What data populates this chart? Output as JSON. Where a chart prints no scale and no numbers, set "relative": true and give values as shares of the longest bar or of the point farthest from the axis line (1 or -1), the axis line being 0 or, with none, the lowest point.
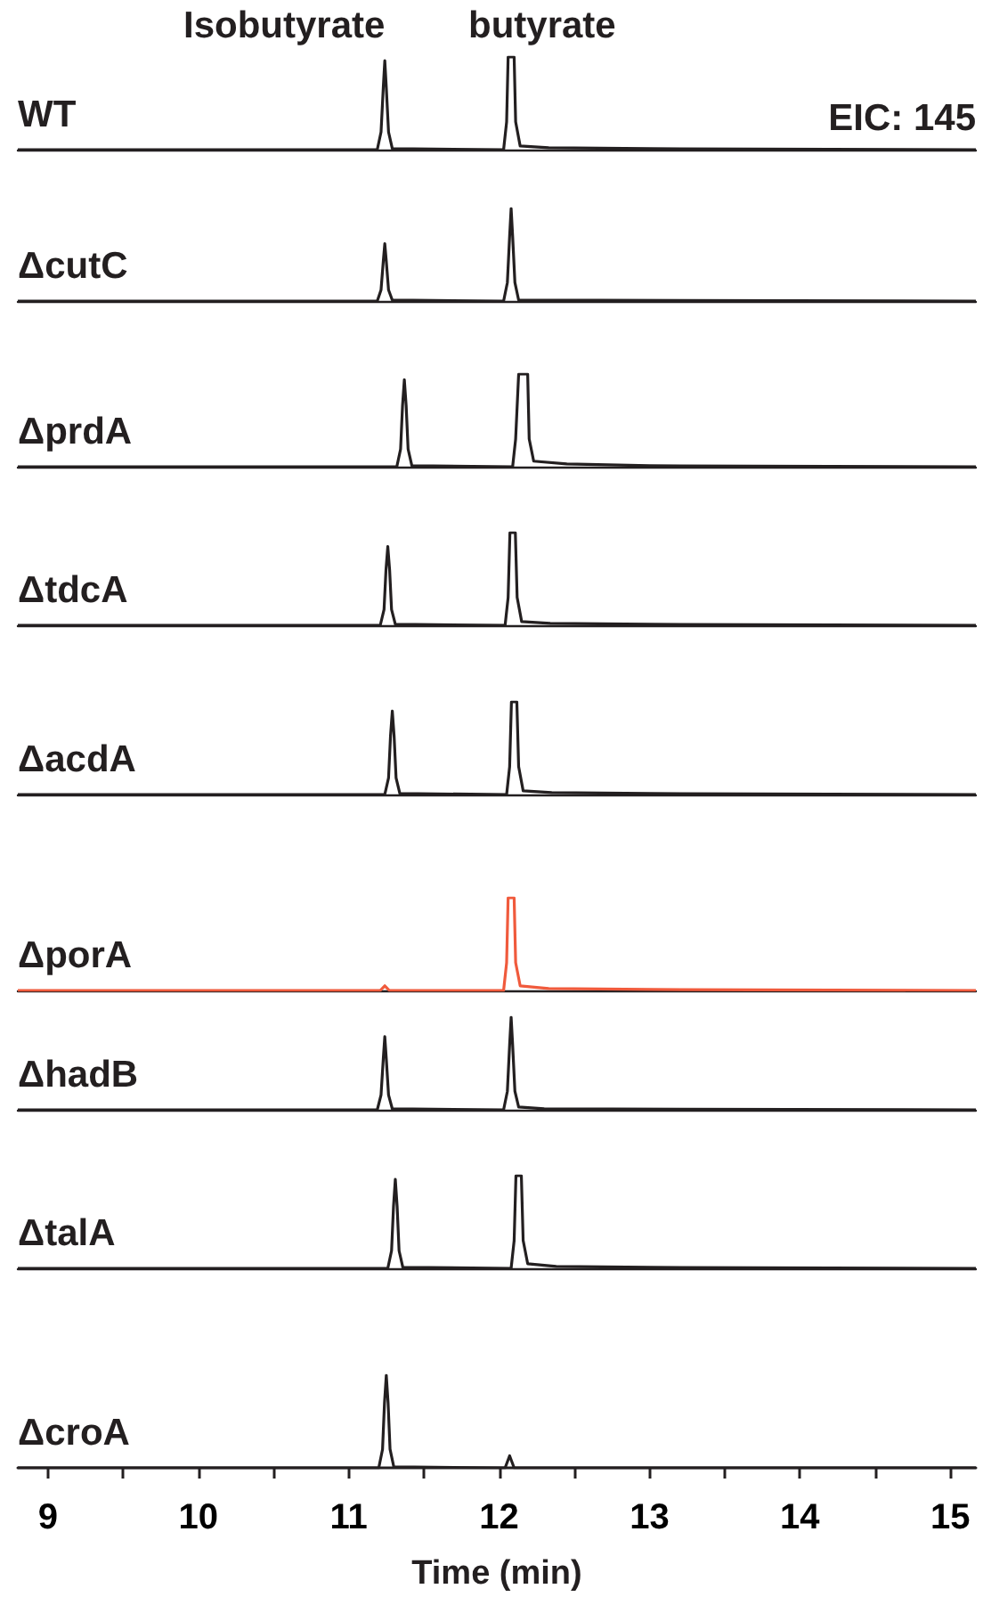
{
  "chart_data": [
    {
      "type": "line",
      "relative": true,
      "annotations": [
        "Isobutyrate",
        "butyrate",
        "EIC: 145"
      ],
      "xlim": [
        8.8,
        15.17
      ],
      "tick_labels": false,
      "series": [
        {
          "name": "WT",
          "color": "#231f20",
          "x": [
            8.8,
            11.19,
            11.215,
            11.23,
            11.24,
            11.25,
            11.265,
            11.29,
            12.03,
            12.05,
            12.06,
            12.1,
            12.11,
            12.14,
            12.33,
            13,
            15.17
          ],
          "values": [
            0,
            0,
            0.19,
            0.67,
            0.96,
            0.67,
            0.19,
            0.01,
            0,
            0.3,
            1,
            1,
            0.3,
            0.04,
            0.02,
            0.01,
            0
          ]
        }
      ]
    },
    {
      "type": "line",
      "relative": true,
      "xlim": [
        8.8,
        15.17
      ],
      "tick_labels": false,
      "series": [
        {
          "name": "ΔcutC",
          "color": "#231f20",
          "x": [
            8.8,
            11.19,
            11.215,
            11.23,
            11.24,
            11.25,
            11.265,
            11.29,
            12.03,
            12.055,
            12.07,
            12.08,
            12.09,
            12.105,
            12.13,
            15.17
          ],
          "values": [
            0,
            0,
            0.12,
            0.43,
            0.62,
            0.43,
            0.12,
            0.01,
            0,
            0.2,
            0.7,
            1,
            0.7,
            0.2,
            0.01,
            0
          ]
        }
      ]
    },
    {
      "type": "line",
      "relative": true,
      "xlim": [
        8.8,
        15.17
      ],
      "tick_labels": false,
      "series": [
        {
          "name": "ΔprdA",
          "color": "#231f20",
          "x": [
            8.8,
            11.32,
            11.345,
            11.358,
            11.37,
            11.382,
            11.395,
            11.42,
            12.09,
            12.11,
            12.13,
            12.19,
            12.2,
            12.23,
            12.45,
            13,
            15.17
          ],
          "values": [
            0,
            0,
            0.19,
            0.66,
            0.94,
            0.66,
            0.19,
            0.01,
            0,
            0.3,
            1,
            1,
            0.3,
            0.06,
            0.03,
            0.01,
            0
          ]
        }
      ]
    },
    {
      "type": "line",
      "relative": true,
      "xlim": [
        8.8,
        15.17
      ],
      "tick_labels": false,
      "series": [
        {
          "name": "ΔtdcA",
          "color": "#231f20",
          "x": [
            8.8,
            11.21,
            11.235,
            11.248,
            11.26,
            11.272,
            11.285,
            11.31,
            12.04,
            12.06,
            12.072,
            12.108,
            12.12,
            12.15,
            12.34,
            13,
            15.17
          ],
          "values": [
            0,
            0,
            0.17,
            0.6,
            0.85,
            0.6,
            0.17,
            0.01,
            0,
            0.3,
            1,
            1,
            0.3,
            0.04,
            0.02,
            0.01,
            0
          ]
        }
      ]
    },
    {
      "type": "line",
      "relative": true,
      "xlim": [
        8.8,
        15.17
      ],
      "tick_labels": false,
      "series": [
        {
          "name": "ΔacdA",
          "color": "#231f20",
          "x": [
            8.8,
            11.24,
            11.265,
            11.278,
            11.29,
            11.302,
            11.315,
            11.34,
            12.05,
            12.07,
            12.082,
            12.118,
            12.13,
            12.16,
            12.35,
            13,
            15.17
          ],
          "values": [
            0,
            0,
            0.18,
            0.63,
            0.9,
            0.63,
            0.18,
            0.01,
            0,
            0.3,
            1,
            1,
            0.3,
            0.04,
            0.02,
            0.01,
            0
          ]
        }
      ]
    },
    {
      "type": "line",
      "relative": true,
      "xlim": [
        8.8,
        15.17
      ],
      "tick_labels": false,
      "series": [
        {
          "name": "ΔporA",
          "color": "#f05a3c",
          "x": [
            8.8,
            11.21,
            11.24,
            11.27,
            12.03,
            12.05,
            12.06,
            12.1,
            12.11,
            12.14,
            12.33,
            13,
            15.17
          ],
          "values": [
            0,
            0,
            0.05,
            0,
            0,
            0.3,
            1,
            1,
            0.3,
            0.05,
            0.02,
            0.01,
            0
          ]
        }
      ]
    },
    {
      "type": "line",
      "relative": true,
      "xlim": [
        8.8,
        15.17
      ],
      "tick_labels": false,
      "series": [
        {
          "name": "ΔhadB",
          "color": "#231f20",
          "x": [
            8.8,
            11.19,
            11.215,
            11.23,
            11.24,
            11.25,
            11.265,
            11.29,
            12.03,
            12.055,
            12.07,
            12.08,
            12.09,
            12.105,
            12.13,
            12.3,
            15.17
          ],
          "values": [
            0,
            0,
            0.16,
            0.55,
            0.79,
            0.55,
            0.16,
            0.01,
            0,
            0.2,
            0.7,
            1,
            0.7,
            0.2,
            0.03,
            0.01,
            0
          ]
        }
      ]
    },
    {
      "type": "line",
      "relative": true,
      "xlim": [
        8.8,
        15.17
      ],
      "tick_labels": false,
      "series": [
        {
          "name": "ΔtalA",
          "color": "#231f20",
          "x": [
            8.8,
            11.26,
            11.285,
            11.298,
            11.31,
            11.322,
            11.335,
            11.36,
            12.08,
            12.1,
            12.112,
            12.148,
            12.16,
            12.19,
            12.38,
            13,
            15.17
          ],
          "values": [
            0,
            0,
            0.19,
            0.67,
            0.96,
            0.67,
            0.19,
            0.01,
            0,
            0.3,
            1,
            1,
            0.3,
            0.05,
            0.02,
            0.01,
            0
          ]
        }
      ]
    },
    {
      "type": "line",
      "relative": true,
      "xlabel": "Time (min)",
      "xlim": [
        8.8,
        15.17
      ],
      "xticks": [
        9,
        {
          "value": 9.5,
          "label": null
        },
        10,
        {
          "value": 10.5,
          "label": null
        },
        11,
        {
          "value": 11.5,
          "label": null
        },
        12,
        {
          "value": 12.5,
          "label": null
        },
        13,
        {
          "value": 13.5,
          "label": null
        },
        14,
        {
          "value": 14.5,
          "label": null
        },
        15
      ],
      "tick_labels": "x",
      "series": [
        {
          "name": "ΔcroA",
          "color": "#231f20",
          "x": [
            8.8,
            11.2,
            11.225,
            11.238,
            11.25,
            11.262,
            11.275,
            11.3,
            12.04,
            12.07,
            12.1,
            15.17
          ],
          "values": [
            0,
            0,
            0.2,
            0.7,
            1,
            0.7,
            0.2,
            0.01,
            0,
            0.13,
            0,
            0
          ]
        }
      ]
    }
  ]
}
